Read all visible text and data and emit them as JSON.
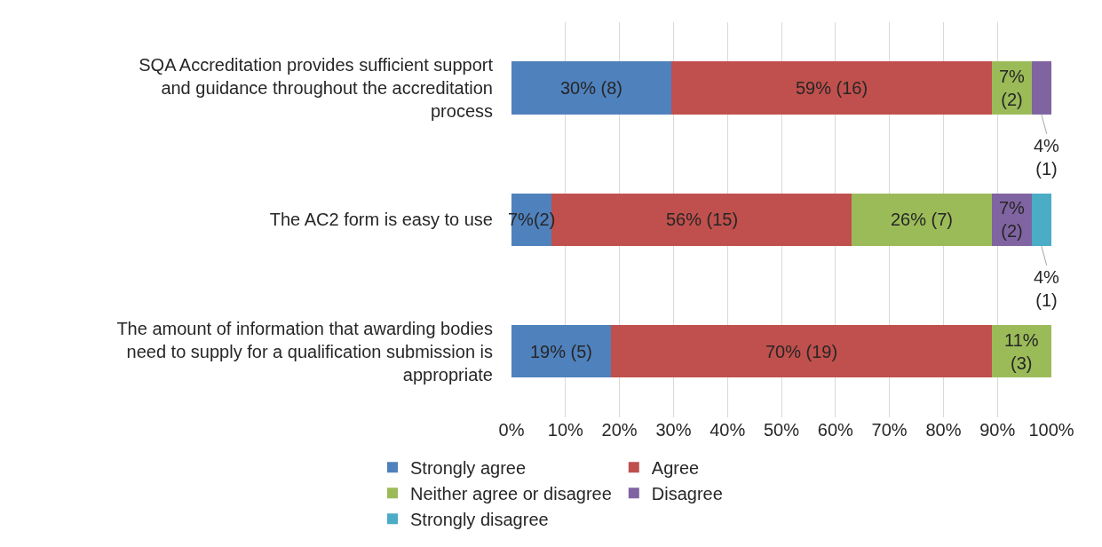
{
  "chart_data": {
    "type": "bar",
    "orientation": "horizontal",
    "stacked": true,
    "categories": [
      "SQA Accreditation provides sufficient support and guidance throughout the accreditation process",
      "The AC2 form is easy to use",
      "The amount of information that awarding bodies need to supply for a qualification submission is appropriate"
    ],
    "series": [
      {
        "name": "Strongly agree",
        "color": "#4f81bd",
        "values": [
          29.6,
          7.4,
          18.5
        ],
        "value_labels": [
          "30% (8)",
          "7%(2)",
          "19% (5)"
        ]
      },
      {
        "name": "Agree",
        "color": "#c0504d",
        "values": [
          59.3,
          55.6,
          70.4
        ],
        "value_labels": [
          "59% (16)",
          "56% (15)",
          "70% (19)"
        ]
      },
      {
        "name": "Neither agree or disagree",
        "color": "#9bbb59",
        "values": [
          7.4,
          25.9,
          11.1
        ],
        "value_labels": [
          "7% (2)",
          "26% (7)",
          "11% (3)"
        ]
      },
      {
        "name": "Disagree",
        "color": "#8064a2",
        "values": [
          3.7,
          7.4,
          null
        ],
        "value_labels": [
          "4% (1)",
          "7% (2)",
          null
        ]
      },
      {
        "name": "Strongly disagree",
        "color": "#4bacc6",
        "values": [
          null,
          3.7,
          null
        ],
        "value_labels": [
          null,
          "4% (1)",
          null
        ]
      }
    ],
    "xlim": [
      0,
      100
    ],
    "xticks": [
      {
        "value": 0,
        "label": "0%"
      },
      {
        "value": 10,
        "label": "10%"
      },
      {
        "value": 20,
        "label": "20%"
      },
      {
        "value": 30,
        "label": "30%"
      },
      {
        "value": 40,
        "label": "40%"
      },
      {
        "value": 50,
        "label": "50%"
      },
      {
        "value": 60,
        "label": "60%"
      },
      {
        "value": 70,
        "label": "70%"
      },
      {
        "value": 80,
        "label": "80%"
      },
      {
        "value": 90,
        "label": "90%"
      },
      {
        "value": 100,
        "label": "100%"
      }
    ],
    "grid": "x",
    "legend": "bottom"
  }
}
